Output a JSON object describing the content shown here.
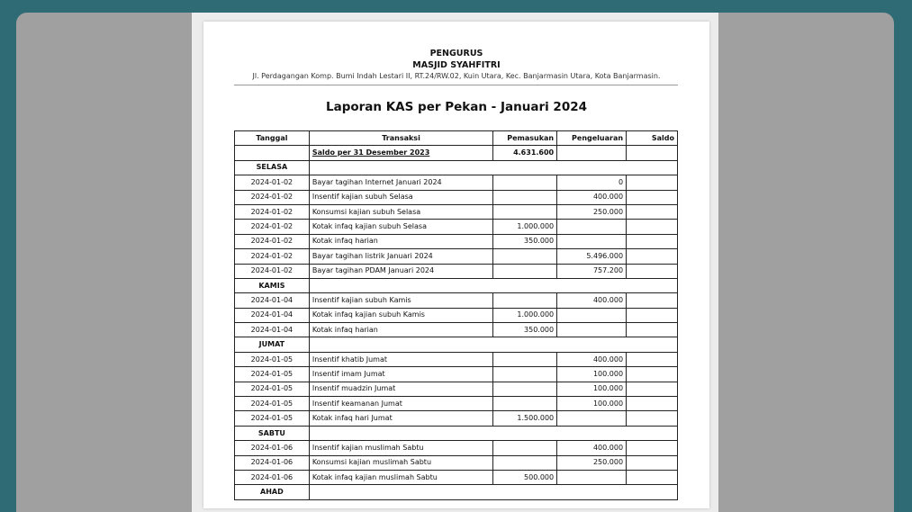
{
  "header": {
    "org": "PENGURUS",
    "name": "MASJID SYAHFITRI",
    "address": "Jl. Perdagangan Komp. Bumi Indah Lestari II, RT.24/RW.02, Kuin Utara, Kec. Banjarmasin Utara, Kota Banjarmasin."
  },
  "report_title": "Laporan KAS per Pekan - Januari 2024",
  "table": {
    "columns": [
      "Tanggal",
      "Transaksi",
      "Pemasukan",
      "Pengeluaran",
      "Saldo"
    ],
    "opening": {
      "label": "Saldo per 31 Desember 2023",
      "pemasukan": "4.631.600"
    },
    "rows": [
      {
        "day": "SELASA"
      },
      {
        "date": "2024-01-02",
        "desc": "Bayar tagihan Internet Januari 2024",
        "in": "",
        "out": "0"
      },
      {
        "date": "2024-01-02",
        "desc": "Insentif kajian subuh Selasa",
        "in": "",
        "out": "400.000"
      },
      {
        "date": "2024-01-02",
        "desc": "Konsumsi kajian subuh Selasa",
        "in": "",
        "out": "250.000"
      },
      {
        "date": "2024-01-02",
        "desc": "Kotak infaq kajian subuh Selasa",
        "in": "1.000.000",
        "out": ""
      },
      {
        "date": "2024-01-02",
        "desc": "Kotak infaq harian",
        "in": "350.000",
        "out": ""
      },
      {
        "date": "2024-01-02",
        "desc": "Bayar tagihan listrik Januari 2024",
        "in": "",
        "out": "5.496.000"
      },
      {
        "date": "2024-01-02",
        "desc": "Bayar tagihan PDAM Januari 2024",
        "in": "",
        "out": "757.200"
      },
      {
        "day": "KAMIS"
      },
      {
        "date": "2024-01-04",
        "desc": "Insentif kajian subuh Kamis",
        "in": "",
        "out": "400.000"
      },
      {
        "date": "2024-01-04",
        "desc": "Kotak infaq kajian subuh Kamis",
        "in": "1.000.000",
        "out": ""
      },
      {
        "date": "2024-01-04",
        "desc": "Kotak infaq harian",
        "in": "350.000",
        "out": ""
      },
      {
        "day": "JUMAT"
      },
      {
        "date": "2024-01-05",
        "desc": "Insentif khatib Jumat",
        "in": "",
        "out": "400.000"
      },
      {
        "date": "2024-01-05",
        "desc": "Insentif imam Jumat",
        "in": "",
        "out": "100.000"
      },
      {
        "date": "2024-01-05",
        "desc": "Insentif muadzin Jumat",
        "in": "",
        "out": "100.000"
      },
      {
        "date": "2024-01-05",
        "desc": "Insentif keamanan Jumat",
        "in": "",
        "out": "100.000"
      },
      {
        "date": "2024-01-05",
        "desc": "Kotak infaq hari Jumat",
        "in": "1.500.000",
        "out": ""
      },
      {
        "day": "SABTU"
      },
      {
        "date": "2024-01-06",
        "desc": "Insentif kajian muslimah Sabtu",
        "in": "",
        "out": "400.000"
      },
      {
        "date": "2024-01-06",
        "desc": "Konsumsi kajian muslimah Sabtu",
        "in": "",
        "out": "250.000"
      },
      {
        "date": "2024-01-06",
        "desc": "Kotak infaq kajian muslimah Sabtu",
        "in": "500.000",
        "out": ""
      },
      {
        "day": "AHAD"
      }
    ]
  }
}
